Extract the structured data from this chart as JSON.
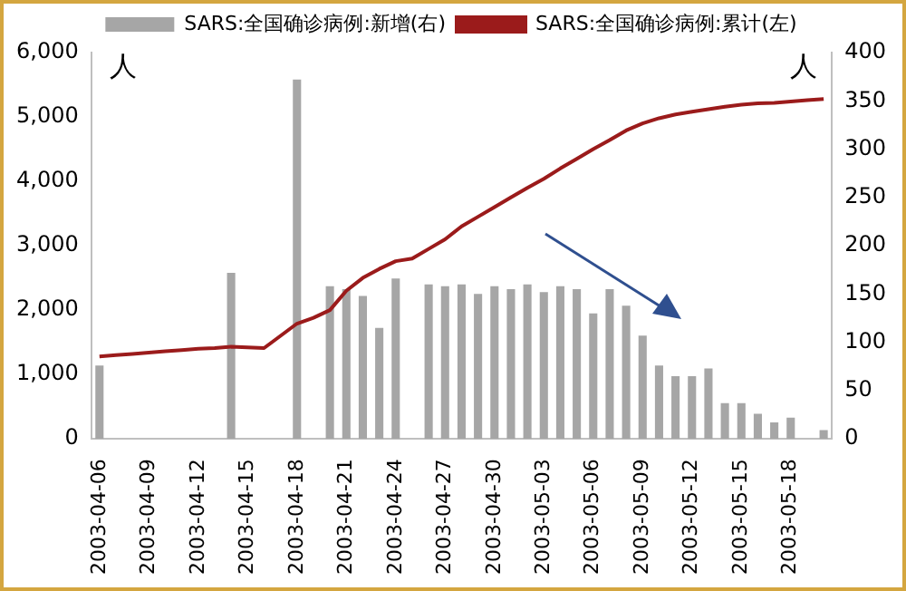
{
  "chart_data": {
    "type": "bar",
    "ylabel": "人",
    "y2label": "人",
    "categories": [
      "2003-04-06",
      null,
      null,
      "2003-04-09",
      null,
      null,
      "2003-04-12",
      null,
      null,
      "2003-04-15",
      null,
      null,
      "2003-04-18",
      null,
      null,
      "2003-04-21",
      null,
      null,
      "2003-04-24",
      null,
      null,
      "2003-04-27",
      null,
      null,
      "2003-04-30",
      null,
      null,
      "2003-05-03",
      null,
      null,
      "2003-05-06",
      null,
      null,
      "2003-05-09",
      null,
      null,
      "2003-05-12",
      null,
      null,
      "2003-05-15",
      null,
      null,
      "2003-05-18",
      null,
      null
    ],
    "series": [
      {
        "name": "SARS:全国确诊病例:新增(右)",
        "axis": "y2",
        "color": "#a6a6a6",
        "values": [
          76,
          0,
          0,
          0,
          0,
          0,
          0,
          0,
          172,
          0,
          0,
          0,
          372,
          0,
          158,
          155,
          148,
          115,
          166,
          0,
          160,
          158,
          160,
          150,
          158,
          155,
          160,
          152,
          158,
          155,
          130,
          155,
          138,
          107,
          76,
          65,
          65,
          73,
          37,
          37,
          26,
          17,
          22,
          null,
          9
        ]
      },
      {
        "name": "SARS:全国确诊病例:累计(左)",
        "type": "line",
        "color": "#9b1b1b",
        "values": [
          1280,
          1300,
          1320,
          1340,
          1360,
          1380,
          1400,
          1410,
          1430,
          1420,
          1410,
          1600,
          1790,
          1880,
          2000,
          2300,
          2500,
          2640,
          2760,
          2800,
          2950,
          3100,
          3300,
          3450,
          3600,
          3750,
          3900,
          4040,
          4200,
          4350,
          4500,
          4640,
          4790,
          4900,
          4980,
          5040,
          5080,
          5120,
          5160,
          5190,
          5210,
          5220,
          5240,
          5260,
          5280
        ]
      }
    ],
    "ylim": [
      0,
      6000
    ],
    "yticks": [
      0,
      {
        "value": 1000,
        "label": "1,000"
      },
      {
        "value": 2000,
        "label": "2,000"
      },
      {
        "value": 3000,
        "label": "3,000"
      },
      {
        "value": 4000,
        "label": "4,000"
      },
      {
        "value": 5000,
        "label": "5,000"
      },
      {
        "value": 6000,
        "label": "6,000"
      }
    ],
    "y2lim": [
      0,
      400
    ],
    "y2ticks": [
      0,
      50,
      100,
      150,
      200,
      250,
      300,
      350,
      400
    ],
    "legend": "top",
    "grid": false
  }
}
